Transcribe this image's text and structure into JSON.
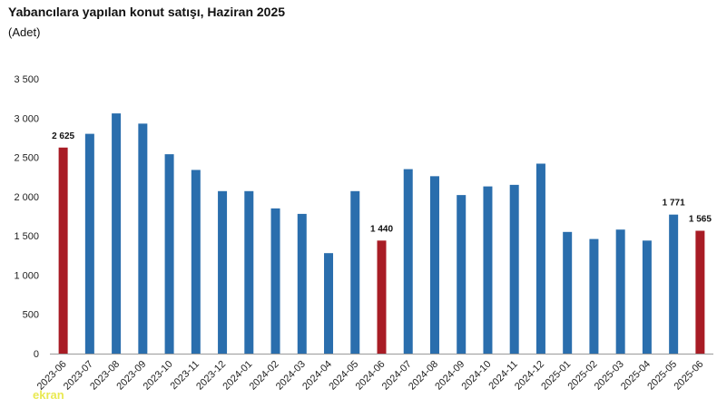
{
  "header": {
    "title": "Yabancılara yapılan konut satışı, Haziran 2025",
    "subtitle": "(Adet)"
  },
  "watermark": "ekran",
  "colors": {
    "normal": "#2a6ead",
    "highlight": "#a81c25"
  },
  "chart_data": {
    "type": "bar",
    "title": "Yabancılara yapılan konut satışı, Haziran 2025",
    "subtitle": "(Adet)",
    "xlabel": "",
    "ylabel": "",
    "ylim": [
      0,
      3500
    ],
    "yticks": [
      0,
      500,
      1000,
      1500,
      2000,
      2500,
      3000,
      3500
    ],
    "ytick_labels": [
      "0",
      "500",
      "1 000",
      "1 500",
      "2 000",
      "2 500",
      "3 000",
      "3 500"
    ],
    "grid": false,
    "legend": "none",
    "categories": [
      "2023-06",
      "2023-07",
      "2023-08",
      "2023-09",
      "2023-10",
      "2023-11",
      "2023-12",
      "2024-01",
      "2024-02",
      "2024-03",
      "2024-04",
      "2024-05",
      "2024-06",
      "2024-07",
      "2024-08",
      "2024-09",
      "2024-10",
      "2024-11",
      "2024-12",
      "2025-01",
      "2025-02",
      "2025-03",
      "2025-04",
      "2025-05",
      "2025-06"
    ],
    "values": [
      2625,
      2800,
      3060,
      2930,
      2540,
      2340,
      2070,
      2070,
      1850,
      1780,
      1280,
      2070,
      1440,
      2350,
      2260,
      2020,
      2130,
      2150,
      2420,
      1550,
      1460,
      1580,
      1440,
      1771,
      1565
    ],
    "highlighted": [
      "2023-06",
      "2024-06",
      "2025-06"
    ],
    "data_labels": [
      {
        "category": "2023-06",
        "text": "2 625"
      },
      {
        "category": "2024-06",
        "text": "1 440"
      },
      {
        "category": "2025-05",
        "text": "1 771"
      },
      {
        "category": "2025-06",
        "text": "1 565"
      }
    ]
  }
}
